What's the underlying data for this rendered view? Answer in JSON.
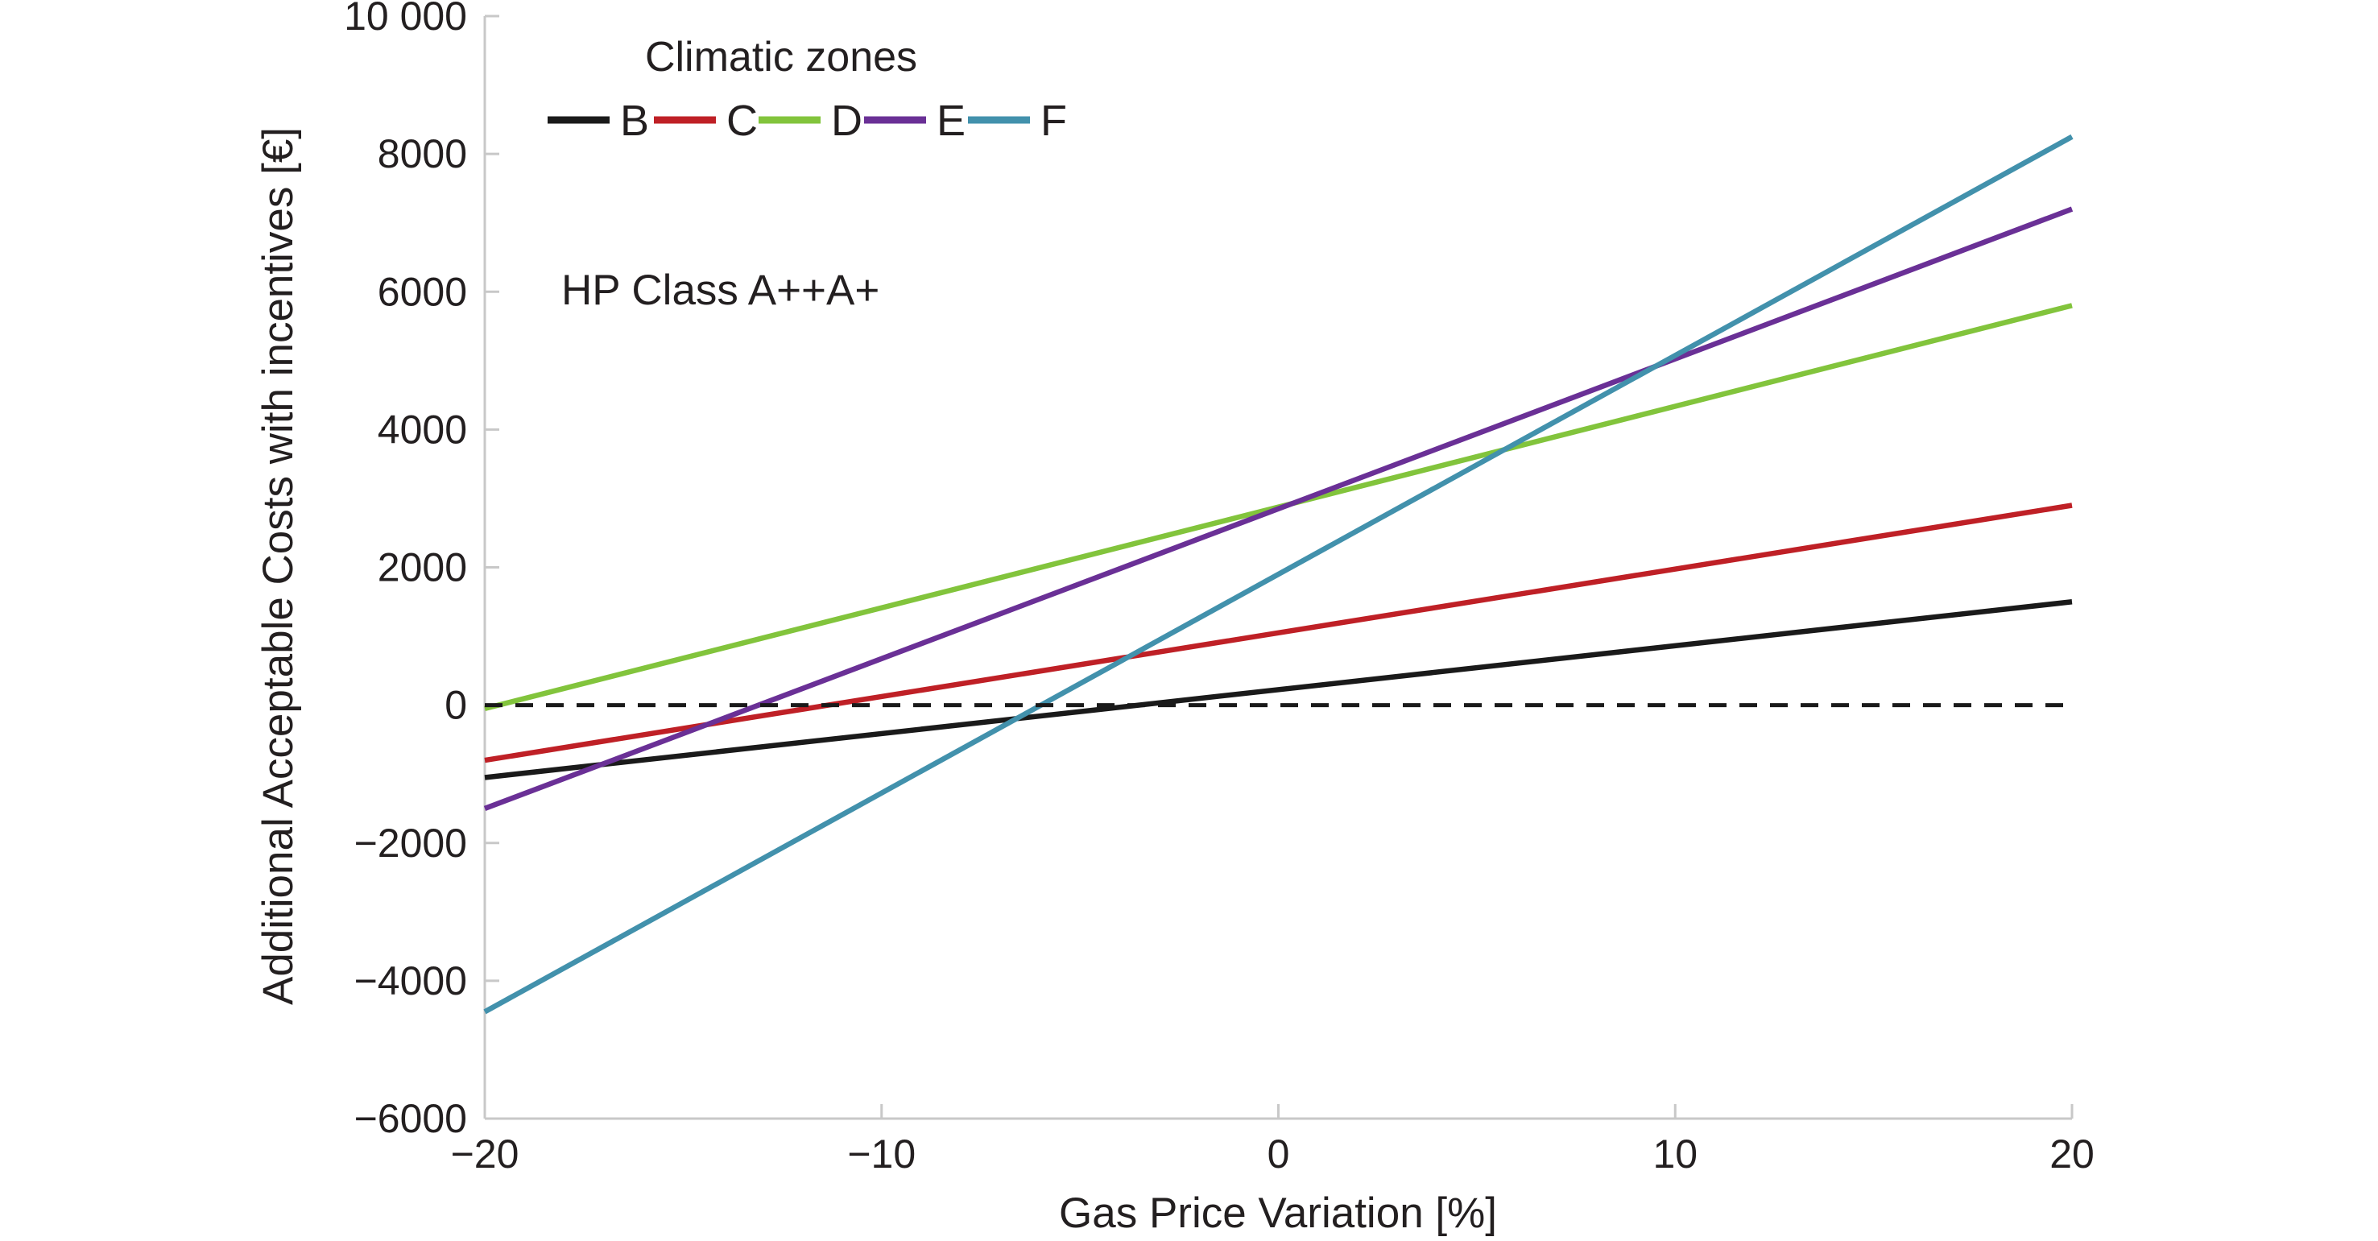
{
  "chart_data": {
    "type": "line",
    "xlabel": "Gas Price Variation [%]",
    "ylabel": "Additional Acceptable Costs with incentives [€]",
    "annotation": "HP Class A++A+",
    "legend_title": "Climatic zones",
    "x": [
      -20,
      20
    ],
    "xlim": [
      -20,
      20
    ],
    "ylim": [
      -6000,
      10000
    ],
    "xticks": [
      -20,
      -10,
      0,
      10,
      20
    ],
    "xtick_labels": [
      "−20",
      "−10",
      "0",
      "10",
      "20"
    ],
    "yticks": [
      -6000,
      -4000,
      -2000,
      0,
      2000,
      4000,
      6000,
      8000,
      10000
    ],
    "ytick_labels": [
      "−6000",
      "−4000",
      "−2000",
      "0",
      "2000",
      "4000",
      "6000",
      "8000",
      "10 000"
    ],
    "zero_line": {
      "y": 0,
      "style": "dashed",
      "color": "#1a1a1a"
    },
    "axis_color": "#c8c8c8",
    "text_color": "#231f20",
    "grid": false,
    "legend_position": "top-left-inside",
    "series": [
      {
        "name": "B",
        "color": "#1a1a1a",
        "values": [
          -1050,
          1500
        ]
      },
      {
        "name": "C",
        "color": "#bf2026",
        "values": [
          -800,
          2900
        ]
      },
      {
        "name": "D",
        "color": "#82c43c",
        "values": [
          -50,
          5800
        ]
      },
      {
        "name": "E",
        "color": "#6a3096",
        "values": [
          -1500,
          7200
        ]
      },
      {
        "name": "F",
        "color": "#4291ac",
        "values": [
          -4450,
          8250
        ]
      }
    ]
  }
}
